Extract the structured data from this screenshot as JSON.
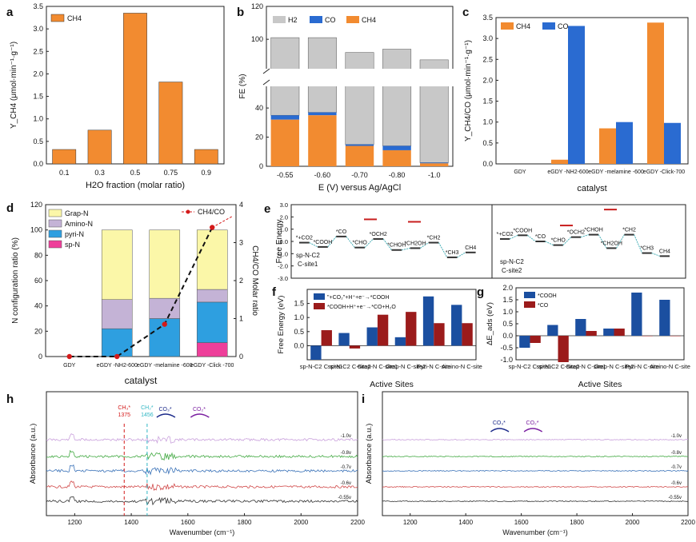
{
  "chart_data": [
    {
      "panel": "a",
      "type": "bar",
      "xlabel": "H2O fraction (molar ratio)",
      "ylabel": "Y_CH4 (μmol·min⁻¹·g⁻¹)",
      "categories": [
        "0.1",
        "0.3",
        "0.5",
        "0.75",
        "0.9"
      ],
      "series": [
        {
          "name": "CH4",
          "values": [
            0.32,
            0.75,
            3.35,
            1.82,
            0.32
          ]
        }
      ],
      "ylim": [
        0,
        3.5
      ],
      "yticks": [
        "0.0",
        "0.5",
        "1.0",
        "1.5",
        "2.0",
        "2.5",
        "3.0",
        "3.5"
      ],
      "legend": [
        "CH4"
      ],
      "colors": [
        "#f28b30"
      ]
    },
    {
      "panel": "b",
      "type": "bar",
      "xlabel": "E (V) versus Ag/AgCl",
      "ylabel": "FE (%)",
      "categories": [
        "-0.55",
        "-0.60",
        "-0.70",
        "-0.80",
        "-1.0"
      ],
      "series": [
        {
          "name": "H2",
          "values": [
            66,
            64,
            77,
            80,
            85
          ]
        },
        {
          "name": "CO",
          "values": [
            3,
            2,
            1,
            3,
            0.5
          ]
        },
        {
          "name": "CH4",
          "values": [
            32,
            35,
            14,
            11,
            2
          ]
        }
      ],
      "stacked": true,
      "ylim": [
        0,
        120
      ],
      "yticks": [
        "0",
        "20",
        "40",
        "100",
        "120"
      ],
      "legend": [
        "H2",
        "CO",
        "CH4"
      ],
      "colors": [
        "#c8c8c8",
        "#2a6bd1",
        "#f28b30"
      ]
    },
    {
      "panel": "c",
      "type": "bar",
      "xlabel": "catalyst",
      "ylabel": "Y_CH4/CO (μmol·min⁻¹·g⁻¹)",
      "categories": [
        "GDY",
        "eGDY -NH2-600",
        "eGDY -melamine -600",
        "eGDY -Click-700"
      ],
      "series": [
        {
          "name": "CH4",
          "values": [
            0,
            0.1,
            0.85,
            3.38
          ]
        },
        {
          "name": "CO",
          "values": [
            0,
            3.3,
            1.0,
            0.98
          ]
        }
      ],
      "ylim": [
        0,
        3.5
      ],
      "yticks": [
        "0.0",
        "0.5",
        "1.0",
        "1.5",
        "2.0",
        "2.5",
        "3.0",
        "3.5"
      ],
      "legend": [
        "CH4",
        "CO"
      ],
      "colors": [
        "#f28b30",
        "#2a6bd1"
      ]
    },
    {
      "panel": "d",
      "type": "bar",
      "xlabel": "catalyst",
      "ylabel": "N configuration ratio (%)",
      "y2label": "CH4/CO Molar ratio",
      "categories": [
        "GDY",
        "eGDY -NH2-600",
        "eGDY -melamine -600",
        "eGDY -Click -700"
      ],
      "series": [
        {
          "name": "sp-N",
          "values": [
            0,
            0,
            0,
            11
          ]
        },
        {
          "name": "pyri-N",
          "values": [
            0,
            22,
            30,
            32
          ]
        },
        {
          "name": "Amino-N",
          "values": [
            0,
            23,
            16,
            10
          ]
        },
        {
          "name": "Grap-N",
          "values": [
            0,
            55,
            54,
            47
          ]
        },
        {
          "name": "CH4/CO",
          "values": [
            0,
            0,
            0.85,
            3.4
          ]
        }
      ],
      "stacked": true,
      "ylim": [
        0,
        120
      ],
      "y2lim": [
        0,
        4
      ],
      "yticks": [
        "0",
        "20",
        "40",
        "60",
        "80",
        "100",
        "120"
      ],
      "y2ticks": [
        "0",
        "1",
        "2",
        "3",
        "4"
      ],
      "legend": [
        "Grap-N",
        "Amino-N",
        "pyri-N",
        "sp-N",
        "CH4/CO"
      ],
      "colors": [
        "#fbf7a8",
        "#c4b3d6",
        "#2e9fe0",
        "#ee3f9a",
        "#d41a1a"
      ]
    },
    {
      "panel": "e",
      "type": "line",
      "ylabel": "Free Energy",
      "ylim": [
        -3.0,
        3.0
      ],
      "yticks": [
        "-3.0",
        "-2.0",
        "-1.0",
        "0.0",
        "1.0",
        "2.0",
        "3.0"
      ],
      "sites": [
        {
          "name": "sp-N-C2 C-site1",
          "steps": [
            "*+CO2",
            "*COOH",
            "*CO",
            "*CHO",
            "*OCH2",
            "*CHOH",
            "*CH2OH",
            "*CH2",
            "*CH3",
            "CH4"
          ],
          "energies": [
            -0.1,
            -0.45,
            0.4,
            -0.5,
            0.2,
            -0.7,
            -0.55,
            -0.1,
            -1.3,
            -0.9
          ]
        },
        {
          "name": "sp-N-C2 C-site2",
          "steps": [
            "*+CO2",
            "*COOH",
            "*CO",
            "*CHO",
            "*OCH2",
            "*CHOH",
            "*CH2OH",
            "*CH2",
            "*CH3",
            "CH4"
          ],
          "energies": [
            0.2,
            0.5,
            0.0,
            -0.3,
            0.35,
            0.55,
            -0.55,
            0.55,
            -0.95,
            -1.2
          ]
        }
      ],
      "labels": [
        "sp-N-C2",
        "C-site1",
        "sp-N-C2",
        "C-site2"
      ]
    },
    {
      "panel": "f",
      "type": "bar",
      "xlabel": "Active Sites",
      "ylabel": "Free Energy (eV)",
      "categories": [
        "sp-N-C2 C-site1",
        "sp-N-C2 C-site2",
        "Grap-N C-site1",
        "Grap-N C-site2",
        "Pyri-N C-site",
        "Amino-N C-site"
      ],
      "series": [
        {
          "name": "*+CO2+H++e- → *COOH",
          "values": [
            -0.5,
            0.45,
            0.65,
            0.3,
            1.75,
            1.45
          ]
        },
        {
          "name": "*COOH+H++e- → *CO+H2O",
          "values": [
            0.55,
            -0.1,
            1.1,
            1.2,
            0.8,
            0.8
          ]
        }
      ],
      "ylim": [
        -0.5,
        2.0
      ],
      "yticks": [
        "0.0",
        "0.5",
        "1.0",
        "1.5"
      ],
      "legend": [
        "\"+CO₂\"+H⁺+e⁻→*COOH",
        "*COOH+H⁺+e⁻→*CO+H₂O"
      ],
      "colors": [
        "#1b4fa0",
        "#9b1b1b"
      ]
    },
    {
      "panel": "g",
      "type": "bar",
      "xlabel": "Active Sites",
      "ylabel": "ΔE_ads (eV)",
      "categories": [
        "sp-N-C2 C-site1",
        "sp-N-C2 C-site2",
        "Grap-N C-site1",
        "Grap-N C-site2",
        "Pyri-N C-site",
        "Amino-N C-site"
      ],
      "series": [
        {
          "name": "*COOH",
          "values": [
            -0.5,
            0.45,
            0.7,
            0.3,
            1.8,
            1.5
          ]
        },
        {
          "name": "*CO",
          "values": [
            -0.3,
            -1.1,
            0.2,
            0.3,
            0.0,
            0.0
          ]
        }
      ],
      "ylim": [
        -1.0,
        2.0
      ],
      "yticks": [
        "-1.0",
        "-0.5",
        "0.0",
        "0.5",
        "1.0",
        "1.5",
        "2.0"
      ],
      "legend": [
        "*COOH",
        "*CO"
      ],
      "colors": [
        "#1b4fa0",
        "#9b1b1b"
      ]
    },
    {
      "panel": "h",
      "type": "line",
      "xlabel": "Wavenumber (cm⁻¹)",
      "ylabel": "Absorbance (a.u.)",
      "xlim": [
        1100,
        2200
      ],
      "xticks": [
        "1200",
        "1400",
        "1600",
        "1800",
        "2000",
        "2200"
      ],
      "series": [
        {
          "name": "-1.0v",
          "color": "#c9a0dc"
        },
        {
          "name": "-0.8v",
          "color": "#44aa44"
        },
        {
          "name": "-0.7v",
          "color": "#3a72b8"
        },
        {
          "name": "-0.6v",
          "color": "#d14a4a"
        },
        {
          "name": "-0.55v",
          "color": "#333333"
        }
      ],
      "annotations": [
        "CH₃*",
        "1375",
        "CH₂*",
        "1456",
        "CO₃*",
        "CO₂*"
      ]
    },
    {
      "panel": "i",
      "type": "line",
      "xlabel": "Wavenumber (cm⁻¹)",
      "ylabel": "Absorbance (a.u.)",
      "xlim": [
        1100,
        2200
      ],
      "xticks": [
        "1200",
        "1400",
        "1600",
        "1800",
        "2000",
        "2200"
      ],
      "series": [
        {
          "name": "-1.0v",
          "color": "#c9a0dc"
        },
        {
          "name": "-0.8v",
          "color": "#44aa44"
        },
        {
          "name": "-0.7v",
          "color": "#3a72b8"
        },
        {
          "name": "-0.6v",
          "color": "#d14a4a"
        },
        {
          "name": "-0.55v",
          "color": "#333333"
        }
      ],
      "annotations": [
        "CO₃*",
        "CO₂*"
      ]
    }
  ]
}
